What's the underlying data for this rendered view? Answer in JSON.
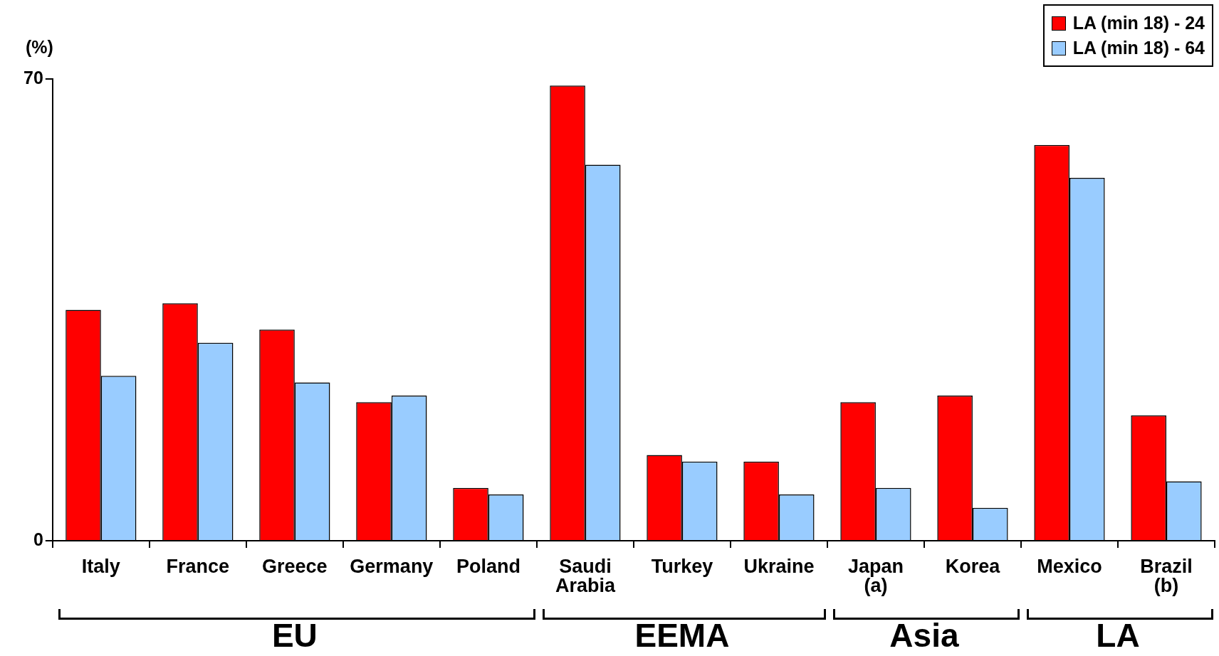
{
  "chart_data": {
    "type": "bar",
    "ylabel": "(%)",
    "categories": [
      "Italy",
      "France",
      "Greece",
      "Germany",
      "Poland",
      "Saudi\nArabia",
      "Turkey",
      "Ukraine",
      "Japan\n(a)",
      "Korea",
      "Mexico",
      "Brazil\n(b)"
    ],
    "series": [
      {
        "name": "LA (min 18) - 24",
        "color": "#ff0000",
        "values": [
          35,
          36,
          32,
          21,
          8,
          69,
          13,
          12,
          21,
          22,
          60,
          19
        ]
      },
      {
        "name": "LA (min 18) - 64",
        "color": "#99ccff",
        "values": [
          25,
          30,
          24,
          22,
          7,
          57,
          12,
          7,
          8,
          5,
          55,
          9
        ]
      }
    ],
    "ylim": [
      0,
      70
    ],
    "yticks": [
      0,
      70
    ],
    "grid": false,
    "legend": "top right",
    "annotations": [
      "EU",
      "EEMA",
      "Asia",
      "LA"
    ]
  }
}
